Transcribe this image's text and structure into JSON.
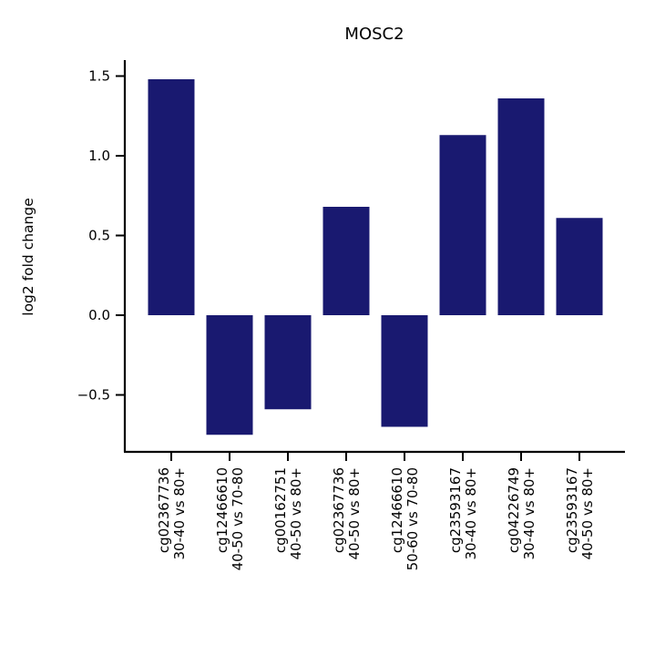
{
  "chart_data": {
    "type": "bar",
    "title": "MOSC2",
    "xlabel": "",
    "ylabel": "log2 fold change",
    "categories": [
      [
        "cg02367736",
        "30-40 vs 80+"
      ],
      [
        "cg12466610",
        "40-50 vs 70-80"
      ],
      [
        "cg00162751",
        "40-50 vs 80+"
      ],
      [
        "cg02367736",
        "40-50 vs 80+"
      ],
      [
        "cg12466610",
        "50-60 vs 70-80"
      ],
      [
        "cg23593167",
        "30-40 vs 80+"
      ],
      [
        "cg04226749",
        "30-40 vs 80+"
      ],
      [
        "cg23593167",
        "40-50 vs 80+"
      ]
    ],
    "values": [
      1.48,
      -0.75,
      -0.59,
      0.68,
      -0.7,
      1.13,
      1.36,
      0.61
    ],
    "ylim": [
      -0.86,
      1.6
    ],
    "yticks": [
      -0.5,
      0.0,
      0.5,
      1.0,
      1.5
    ],
    "ytick_labels": [
      "−0.5",
      "0.0",
      "0.5",
      "1.0",
      "1.5"
    ],
    "grid": false,
    "bar_color": "#191970"
  }
}
